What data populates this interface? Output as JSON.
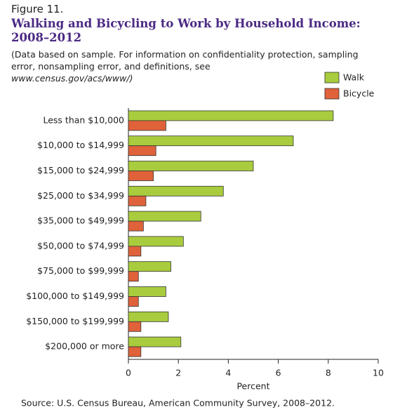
{
  "figure_label": "Figure 11.",
  "chart_data": {
    "type": "bar",
    "orientation": "horizontal",
    "title": "Walking and Bicycling to Work by Household Income: 2008–2012",
    "note": "(Data based on sample. For information on confidentiality protection, sampling error, nonsampling error, and definitions, see",
    "note_url": "www.census.gov/acs/www/)",
    "categories": [
      "Less than $10,000",
      "$10,000 to $14,999",
      "$15,000 to $24,999",
      "$25,000 to $34,999",
      "$35,000 to $49,999",
      "$50,000 to $74,999",
      "$75,000 to $99,999",
      "$100,000 to $149,999",
      "$150,000 to $199,999",
      "$200,000 or more"
    ],
    "series": [
      {
        "name": "Walk",
        "color": "#a9cc3e",
        "values": [
          8.2,
          6.6,
          5.0,
          3.8,
          2.9,
          2.2,
          1.7,
          1.5,
          1.6,
          2.1
        ]
      },
      {
        "name": "Bicycle",
        "color": "#e0623a",
        "values": [
          1.5,
          1.1,
          1.0,
          0.7,
          0.6,
          0.5,
          0.4,
          0.4,
          0.5,
          0.5
        ]
      }
    ],
    "xlabel": "Percent",
    "xlim": [
      0,
      10
    ],
    "xticks": [
      0,
      2,
      4,
      6,
      8,
      10
    ],
    "legend": "top-right",
    "source": "Source: U.S. Census Bureau, American Community Survey, 2008–2012."
  }
}
